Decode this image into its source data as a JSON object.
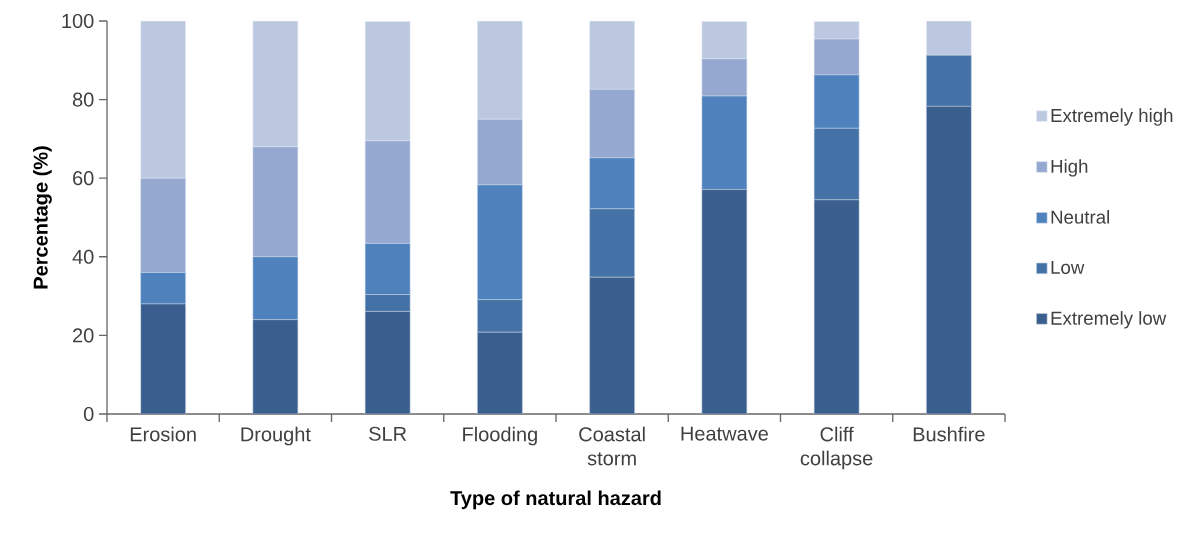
{
  "chart_data": {
    "type": "bar",
    "stacked": true,
    "xlabel": "Type of natural hazard",
    "ylabel": "Percentage (%)",
    "categories": [
      "Erosion",
      "Drought",
      "SLR",
      "Flooding",
      "Coastal storm",
      "Heatwave",
      "Cliff collapse",
      "Bushfire"
    ],
    "series": [
      {
        "name": "Extremely low",
        "color": "#3a5f8e",
        "values": [
          28,
          24,
          26.1,
          20.8,
          34.8,
          57.1,
          54.5,
          78.3
        ]
      },
      {
        "name": "Low",
        "color": "#4472a6",
        "values": [
          0,
          0,
          4.3,
          8.3,
          17.4,
          0,
          18.2,
          13.0
        ]
      },
      {
        "name": "Neutral",
        "color": "#4f81bd",
        "values": [
          8,
          16,
          13.0,
          29.2,
          13.0,
          23.8,
          13.6,
          0
        ]
      },
      {
        "name": "High",
        "color": "#95a9d0",
        "values": [
          24,
          28,
          26.1,
          16.7,
          17.4,
          9.5,
          9.1,
          0
        ]
      },
      {
        "name": "Extremely high",
        "color": "#bcc8e0",
        "values": [
          40,
          32,
          30.4,
          25.0,
          17.4,
          9.5,
          4.5,
          8.7
        ]
      }
    ],
    "ylim": [
      0,
      100
    ],
    "yticks": [
      0,
      20,
      40,
      60,
      80,
      100
    ],
    "grid": false,
    "legend": "right"
  }
}
